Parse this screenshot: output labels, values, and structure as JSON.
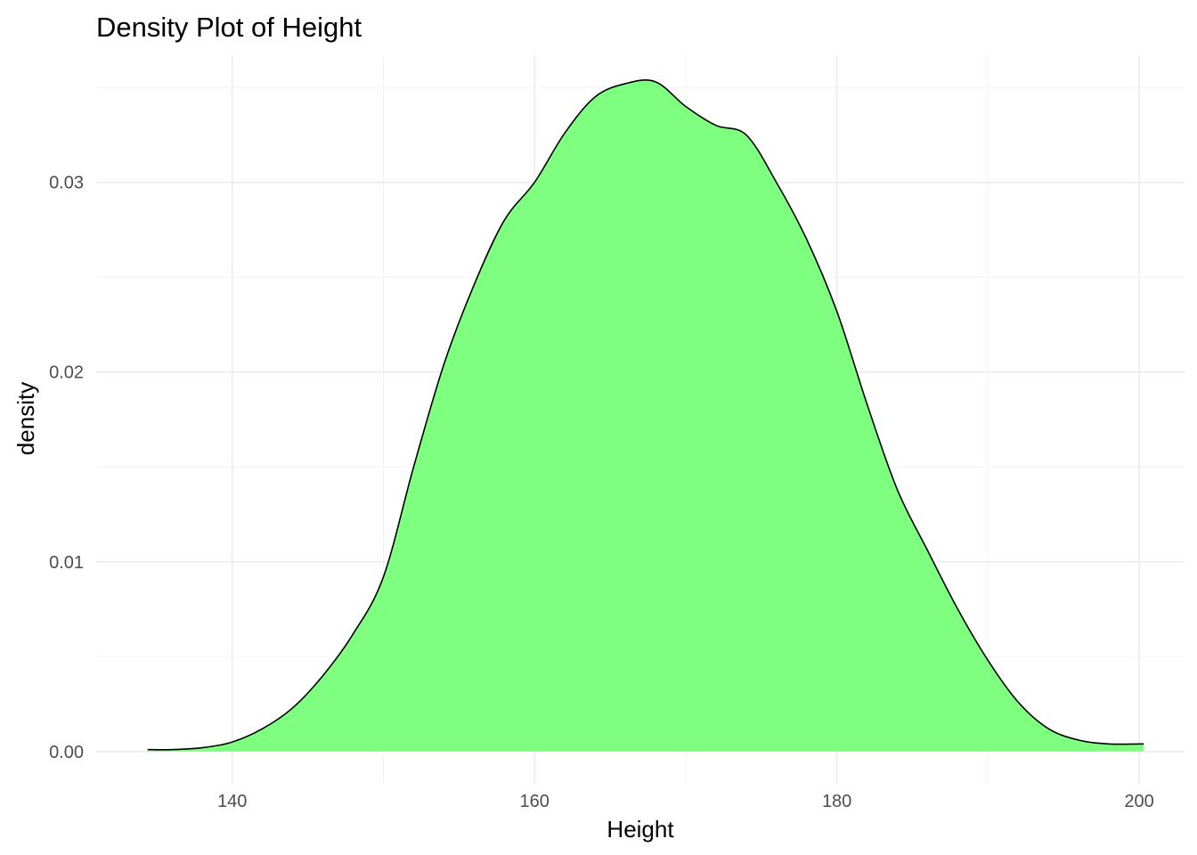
{
  "chart_data": {
    "type": "area",
    "title": "Density Plot of Height",
    "xlabel": "Height",
    "ylabel": "density",
    "xlim": [
      131,
      203
    ],
    "ylim": [
      -0.0017,
      0.0367
    ],
    "x_ticks": [
      140,
      160,
      180,
      200
    ],
    "x_tick_labels": [
      "140",
      "160",
      "180",
      "200"
    ],
    "y_ticks": [
      0.0,
      0.01,
      0.02,
      0.03
    ],
    "y_tick_labels": [
      "0.00",
      "0.01",
      "0.02",
      "0.03"
    ],
    "grid": true,
    "fill_color": "#7fff7f",
    "line_color": "#000000",
    "series": [
      {
        "x": [
          134.4,
          136,
          138,
          140,
          142,
          144,
          146,
          148,
          150,
          152,
          154,
          156,
          158,
          160,
          162,
          164,
          166,
          168,
          170,
          172,
          174,
          176,
          178,
          180,
          182,
          184,
          186,
          188,
          190,
          192,
          194,
          196,
          198,
          200,
          200.3
        ],
        "y": [
          0.0001,
          0.0001,
          0.0002,
          0.0005,
          0.0012,
          0.0023,
          0.004,
          0.0062,
          0.0092,
          0.015,
          0.0204,
          0.0246,
          0.028,
          0.03,
          0.0326,
          0.0345,
          0.0352,
          0.0353,
          0.034,
          0.033,
          0.0325,
          0.03,
          0.027,
          0.0232,
          0.0183,
          0.0138,
          0.0106,
          0.0075,
          0.0048,
          0.0026,
          0.0012,
          0.0006,
          0.0004,
          0.0004,
          0.0004
        ]
      }
    ]
  }
}
